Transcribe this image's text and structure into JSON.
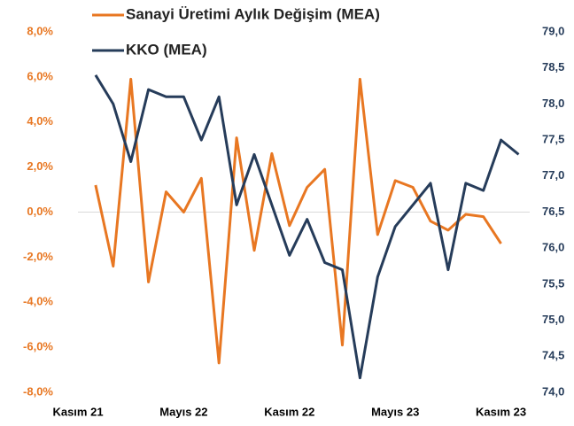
{
  "chart_data": {
    "type": "line",
    "categories": [
      "Kasım 21",
      null,
      null,
      null,
      null,
      null,
      "Mayıs 22",
      null,
      null,
      null,
      null,
      null,
      "Kasım 22",
      null,
      null,
      null,
      null,
      null,
      "Mayıs 23",
      null,
      null,
      null,
      null,
      null,
      "Kasım 23",
      null
    ],
    "series": [
      {
        "name": "Sanayi Üretimi Aylık Değişim (MEA)",
        "color": "#e87722",
        "axis": "y",
        "values": [
          null,
          1.2,
          -2.4,
          5.9,
          -3.1,
          0.9,
          0,
          1.5,
          -6.7,
          3.3,
          -1.7,
          2.6,
          -0.6,
          1.1,
          1.9,
          -5.9,
          5.9,
          -1.0,
          1.4,
          1.1,
          -0.4,
          -0.8,
          -0.1,
          -0.2,
          -1.4,
          null
        ]
      },
      {
        "name": "KKO (MEA)",
        "color": "#263c5a",
        "axis": "y2",
        "values": [
          null,
          78.4,
          78.0,
          77.2,
          78.2,
          78.1,
          78.1,
          77.5,
          78.1,
          76.6,
          77.3,
          76.6,
          75.9,
          76.4,
          75.8,
          75.7,
          74.2,
          75.6,
          76.3,
          76.6,
          76.9,
          75.7,
          76.9,
          76.8,
          77.5,
          77.3
        ]
      }
    ],
    "ylim": [
      -8,
      8
    ],
    "yticks": [
      {
        "value": -8,
        "label": "-8,0%"
      },
      {
        "value": -6,
        "label": "-6,0%"
      },
      {
        "value": -4,
        "label": "-4,0%"
      },
      {
        "value": -2,
        "label": "-2,0%"
      },
      {
        "value": 0,
        "label": "0,0%"
      },
      {
        "value": 2,
        "label": "2,0%"
      },
      {
        "value": 4,
        "label": "4,0%"
      },
      {
        "value": 6,
        "label": "6,0%"
      },
      {
        "value": 8,
        "label": "8,0%"
      }
    ],
    "y2lim": [
      74,
      79
    ],
    "y2ticks": [
      {
        "value": 74,
        "label": "74,0"
      },
      {
        "value": 74.5,
        "label": "74,5"
      },
      {
        "value": 75,
        "label": "75,0"
      },
      {
        "value": 75.5,
        "label": "75,5"
      },
      {
        "value": 76,
        "label": "76,0"
      },
      {
        "value": 76.5,
        "label": "76,5"
      },
      {
        "value": 77,
        "label": "77,0"
      },
      {
        "value": 77.5,
        "label": "77,5"
      },
      {
        "value": 78,
        "label": "78,0"
      },
      {
        "value": 78.5,
        "label": "78,5"
      },
      {
        "value": 79,
        "label": "79,0"
      }
    ],
    "zero_line": true
  }
}
